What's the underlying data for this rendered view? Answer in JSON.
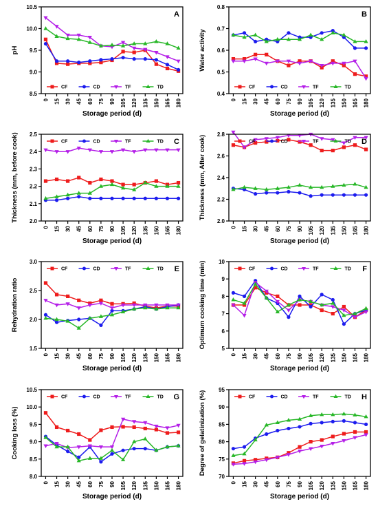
{
  "figure": {
    "colors": {
      "CF": "#ee1c1c",
      "CD": "#1c1cee",
      "TF": "#b41ee8",
      "TD": "#27b727"
    },
    "series_names": [
      "CF",
      "CD",
      "TF",
      "TD"
    ]
  },
  "chart_data": [
    {
      "type": "line",
      "panel": "A",
      "xlabel": "Storage period (d)",
      "ylabel": "pH",
      "x": [
        0,
        15,
        30,
        45,
        60,
        75,
        90,
        105,
        120,
        135,
        150,
        165,
        180
      ],
      "ylim": [
        8.5,
        10.5
      ],
      "yticks": [
        8.5,
        9.0,
        9.5,
        10.0,
        10.5
      ],
      "ytick_labels": [
        "8.5",
        "9.0",
        "9.5",
        "10.0",
        "10.5"
      ],
      "legend": "bottom",
      "series": [
        {
          "name": "CF",
          "values": [
            9.75,
            9.2,
            9.18,
            9.2,
            9.2,
            9.22,
            9.27,
            9.47,
            9.45,
            9.5,
            9.18,
            9.08,
            9.02
          ]
        },
        {
          "name": "CD",
          "values": [
            9.65,
            9.25,
            9.25,
            9.22,
            9.25,
            9.28,
            9.3,
            9.33,
            9.3,
            9.3,
            9.28,
            9.17,
            9.05
          ]
        },
        {
          "name": "TF",
          "values": [
            10.25,
            10.05,
            9.85,
            9.85,
            9.8,
            9.6,
            9.58,
            9.68,
            9.55,
            9.52,
            9.45,
            9.35,
            9.25
          ]
        },
        {
          "name": "TD",
          "values": [
            10.0,
            9.82,
            9.77,
            9.75,
            9.68,
            9.6,
            9.62,
            9.6,
            9.65,
            9.65,
            9.7,
            9.65,
            9.55
          ]
        }
      ]
    },
    {
      "type": "line",
      "panel": "B",
      "xlabel": "Storage period (d)",
      "ylabel": "Water activity",
      "x": [
        0,
        15,
        30,
        45,
        60,
        75,
        90,
        105,
        120,
        135,
        150,
        165,
        180
      ],
      "ylim": [
        0.4,
        0.8
      ],
      "yticks": [
        0.4,
        0.5,
        0.6,
        0.7,
        0.8
      ],
      "ytick_labels": [
        "0.4",
        "0.5",
        "0.6",
        "0.7",
        "0.8"
      ],
      "legend": "bottom",
      "series": [
        {
          "name": "CF",
          "values": [
            0.56,
            0.56,
            0.58,
            0.58,
            0.55,
            0.53,
            0.55,
            0.55,
            0.52,
            0.55,
            0.53,
            0.49,
            0.48
          ]
        },
        {
          "name": "CD",
          "values": [
            0.67,
            0.68,
            0.64,
            0.65,
            0.64,
            0.68,
            0.66,
            0.66,
            0.68,
            0.69,
            0.66,
            0.61,
            0.61
          ]
        },
        {
          "name": "TF",
          "values": [
            0.55,
            0.55,
            0.56,
            0.54,
            0.55,
            0.55,
            0.54,
            0.55,
            0.53,
            0.54,
            0.54,
            0.55,
            0.47
          ]
        },
        {
          "name": "TD",
          "values": [
            0.67,
            0.66,
            0.67,
            0.64,
            0.65,
            0.65,
            0.65,
            0.67,
            0.65,
            0.68,
            0.67,
            0.64,
            0.64
          ]
        }
      ]
    },
    {
      "type": "line",
      "panel": "C",
      "xlabel": "Storage period (d)",
      "ylabel": "Thickness (mm, before cook)",
      "x": [
        0,
        15,
        30,
        45,
        60,
        75,
        90,
        105,
        120,
        135,
        150,
        165,
        180
      ],
      "ylim": [
        2.0,
        2.5
      ],
      "yticks": [
        2.0,
        2.1,
        2.2,
        2.3,
        2.4,
        2.5
      ],
      "ytick_labels": [
        "2.0",
        "2.1",
        "2.2",
        "2.3",
        "2.4",
        "2.5"
      ],
      "legend": "top",
      "series": [
        {
          "name": "CF",
          "values": [
            2.23,
            2.24,
            2.23,
            2.25,
            2.22,
            2.24,
            2.23,
            2.21,
            2.21,
            2.22,
            2.23,
            2.21,
            2.22
          ]
        },
        {
          "name": "CD",
          "values": [
            2.12,
            2.12,
            2.13,
            2.14,
            2.13,
            2.13,
            2.13,
            2.13,
            2.13,
            2.13,
            2.13,
            2.13,
            2.13
          ]
        },
        {
          "name": "TF",
          "values": [
            2.41,
            2.4,
            2.4,
            2.42,
            2.41,
            2.4,
            2.4,
            2.41,
            2.4,
            2.41,
            2.41,
            2.41,
            2.41
          ]
        },
        {
          "name": "TD",
          "values": [
            2.13,
            2.14,
            2.15,
            2.16,
            2.16,
            2.2,
            2.21,
            2.19,
            2.18,
            2.22,
            2.2,
            2.2,
            2.2
          ]
        }
      ]
    },
    {
      "type": "line",
      "panel": "D",
      "xlabel": "Storage period (d)",
      "ylabel": "Thickness (mm, After cook)",
      "x": [
        0,
        15,
        30,
        45,
        60,
        75,
        90,
        105,
        120,
        135,
        150,
        165,
        180
      ],
      "ylim": [
        2.0,
        2.8
      ],
      "yticks": [
        2.0,
        2.2,
        2.4,
        2.6,
        2.8
      ],
      "ytick_labels": [
        "2.0",
        "2.2",
        "2.4",
        "2.6",
        "2.8"
      ],
      "legend": "top",
      "series": [
        {
          "name": "CF",
          "values": [
            2.7,
            2.68,
            2.72,
            2.73,
            2.74,
            2.75,
            2.73,
            2.7,
            2.65,
            2.65,
            2.68,
            2.7,
            2.66
          ]
        },
        {
          "name": "CD",
          "values": [
            2.3,
            2.29,
            2.25,
            2.26,
            2.26,
            2.27,
            2.26,
            2.23,
            2.24,
            2.24,
            2.24,
            2.24,
            2.24
          ]
        },
        {
          "name": "TF",
          "values": [
            2.82,
            2.68,
            2.75,
            2.76,
            2.77,
            2.79,
            2.79,
            2.8,
            2.76,
            2.75,
            2.72,
            2.77,
            2.77
          ]
        },
        {
          "name": "TD",
          "values": [
            2.29,
            2.31,
            2.3,
            2.29,
            2.3,
            2.31,
            2.33,
            2.31,
            2.31,
            2.32,
            2.33,
            2.34,
            2.31
          ]
        }
      ]
    },
    {
      "type": "line",
      "panel": "E",
      "xlabel": "Storage period (d)",
      "ylabel": "Rehydration ratio",
      "x": [
        0,
        15,
        30,
        45,
        60,
        75,
        90,
        105,
        120,
        135,
        150,
        165,
        180
      ],
      "ylim": [
        1.5,
        3.0
      ],
      "yticks": [
        1.5,
        2.0,
        2.5,
        3.0
      ],
      "ytick_labels": [
        "1.5",
        "2.0",
        "2.5",
        "3.0"
      ],
      "legend": "top",
      "series": [
        {
          "name": "CF",
          "values": [
            2.63,
            2.43,
            2.4,
            2.33,
            2.28,
            2.33,
            2.27,
            2.27,
            2.28,
            2.23,
            2.2,
            2.23,
            2.23
          ]
        },
        {
          "name": "CD",
          "values": [
            2.08,
            1.95,
            1.98,
            2.0,
            2.02,
            1.9,
            2.15,
            2.15,
            2.18,
            2.22,
            2.18,
            2.22,
            2.25
          ]
        },
        {
          "name": "TF",
          "values": [
            2.33,
            2.25,
            2.27,
            2.2,
            2.25,
            2.28,
            2.2,
            2.25,
            2.25,
            2.25,
            2.25,
            2.25,
            2.25
          ]
        },
        {
          "name": "TD",
          "values": [
            2.02,
            2.0,
            1.97,
            1.85,
            2.02,
            2.05,
            2.08,
            2.13,
            2.18,
            2.2,
            2.18,
            2.2,
            2.2
          ]
        }
      ]
    },
    {
      "type": "line",
      "panel": "F",
      "xlabel": "Storage period (d)",
      "ylabel": "Optimum cooking time (min)",
      "x": [
        0,
        15,
        30,
        45,
        60,
        75,
        90,
        105,
        120,
        135,
        150,
        165,
        180
      ],
      "ylim": [
        5,
        10
      ],
      "yticks": [
        5,
        6,
        7,
        8,
        9,
        10
      ],
      "ytick_labels": [
        "5",
        "6",
        "7",
        "8",
        "9",
        "10"
      ],
      "legend": "top",
      "series": [
        {
          "name": "CF",
          "values": [
            7.5,
            7.5,
            8.5,
            8.2,
            8.0,
            7.5,
            7.5,
            7.5,
            7.2,
            7.0,
            7.4,
            6.8,
            7.2
          ]
        },
        {
          "name": "CD",
          "values": [
            8.2,
            8.0,
            8.9,
            7.9,
            7.6,
            6.8,
            8.0,
            7.4,
            8.1,
            7.8,
            6.4,
            7.0,
            7.2
          ]
        },
        {
          "name": "TF",
          "values": [
            7.5,
            6.9,
            8.8,
            8.3,
            7.7,
            7.2,
            7.8,
            7.7,
            7.5,
            7.4,
            7.2,
            6.8,
            7.1
          ]
        },
        {
          "name": "TD",
          "values": [
            7.8,
            7.6,
            8.7,
            7.9,
            7.1,
            7.5,
            7.8,
            7.7,
            7.5,
            7.6,
            6.9,
            7.0,
            7.3
          ]
        }
      ]
    },
    {
      "type": "line",
      "panel": "G",
      "xlabel": "Storage period (d)",
      "ylabel": "Cooking loss (%)",
      "x": [
        0,
        15,
        30,
        45,
        60,
        75,
        90,
        105,
        120,
        135,
        150,
        165,
        180
      ],
      "ylim": [
        8.0,
        10.5
      ],
      "yticks": [
        8.0,
        8.5,
        9.0,
        9.5,
        10.0,
        10.5
      ],
      "ytick_labels": [
        "8.0",
        "8.5",
        "9.0",
        "9.5",
        "10.0",
        "10.5"
      ],
      "legend": "top",
      "series": [
        {
          "name": "CF",
          "values": [
            9.83,
            9.42,
            9.32,
            9.22,
            9.05,
            9.33,
            9.42,
            9.43,
            9.42,
            9.38,
            9.35,
            9.25,
            9.27
          ]
        },
        {
          "name": "CD",
          "values": [
            9.15,
            8.9,
            8.72,
            8.55,
            8.85,
            8.42,
            8.65,
            8.75,
            8.8,
            8.8,
            8.75,
            8.85,
            8.88
          ]
        },
        {
          "name": "TF",
          "values": [
            8.88,
            8.95,
            8.83,
            8.85,
            8.88,
            8.85,
            8.85,
            9.65,
            9.58,
            9.55,
            9.45,
            9.4,
            9.47
          ]
        },
        {
          "name": "TD",
          "values": [
            9.12,
            8.85,
            8.85,
            8.45,
            8.52,
            8.52,
            8.75,
            8.48,
            9.0,
            9.08,
            8.75,
            8.85,
            8.88
          ]
        }
      ]
    },
    {
      "type": "line",
      "panel": "H",
      "xlabel": "Storage period (d)",
      "ylabel": "Degree of gelatinization (%)",
      "x": [
        0,
        15,
        30,
        45,
        60,
        75,
        90,
        105,
        120,
        135,
        150,
        165,
        180
      ],
      "ylim": [
        70,
        95
      ],
      "yticks": [
        70,
        75,
        80,
        85,
        90,
        95
      ],
      "ytick_labels": [
        "70",
        "75",
        "80",
        "85",
        "90",
        "95"
      ],
      "legend": "top",
      "series": [
        {
          "name": "CF",
          "values": [
            73.8,
            74.5,
            74.8,
            75.2,
            75.5,
            76.8,
            78.5,
            80.0,
            80.5,
            81.5,
            82.3,
            82.8,
            82.8
          ]
        },
        {
          "name": "CD",
          "values": [
            78.0,
            78.5,
            81.0,
            82.2,
            83.2,
            83.8,
            84.3,
            85.2,
            85.5,
            85.8,
            86.0,
            85.5,
            85.0
          ]
        },
        {
          "name": "TF",
          "values": [
            73.5,
            73.7,
            74.2,
            74.8,
            75.5,
            76.3,
            77.3,
            78.0,
            78.7,
            79.5,
            80.3,
            81.2,
            82.0
          ]
        },
        {
          "name": "TD",
          "values": [
            76.0,
            76.5,
            80.5,
            84.8,
            85.5,
            86.2,
            86.5,
            87.5,
            87.8,
            87.8,
            88.0,
            87.7,
            87.2
          ]
        }
      ]
    }
  ]
}
